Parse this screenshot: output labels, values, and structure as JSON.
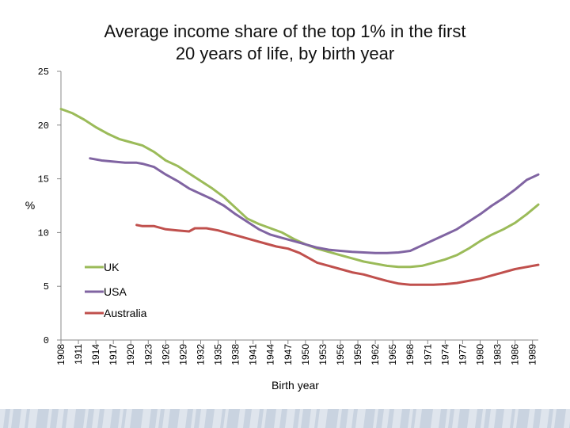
{
  "chart_data": {
    "type": "line",
    "title_lines": [
      "Average income share of the top 1% in the first",
      "20 years of life, by birth year"
    ],
    "xlabel": "Birth year",
    "ylabel": "%",
    "ylim": [
      0,
      25
    ],
    "yticks": [
      0,
      5,
      10,
      15,
      20,
      25
    ],
    "xlim": [
      1908,
      1990
    ],
    "xticks": [
      1908,
      1911,
      1914,
      1917,
      1920,
      1923,
      1926,
      1929,
      1932,
      1935,
      1938,
      1941,
      1944,
      1947,
      1950,
      1953,
      1956,
      1959,
      1962,
      1965,
      1968,
      1971,
      1974,
      1977,
      1980,
      1983,
      1986,
      1989
    ],
    "grid": false,
    "legend_position": "lower-left",
    "series": [
      {
        "name": "UK",
        "color": "#9bbb59",
        "points": [
          [
            1908,
            21.5
          ],
          [
            1910,
            21.1
          ],
          [
            1912,
            20.5
          ],
          [
            1914,
            19.8
          ],
          [
            1916,
            19.2
          ],
          [
            1918,
            18.7
          ],
          [
            1920,
            18.4
          ],
          [
            1922,
            18.1
          ],
          [
            1924,
            17.5
          ],
          [
            1926,
            16.7
          ],
          [
            1928,
            16.2
          ],
          [
            1930,
            15.5
          ],
          [
            1932,
            14.8
          ],
          [
            1934,
            14.1
          ],
          [
            1936,
            13.3
          ],
          [
            1938,
            12.3
          ],
          [
            1940,
            11.3
          ],
          [
            1942,
            10.8
          ],
          [
            1944,
            10.4
          ],
          [
            1946,
            10.0
          ],
          [
            1948,
            9.4
          ],
          [
            1950,
            8.9
          ],
          [
            1952,
            8.5
          ],
          [
            1954,
            8.2
          ],
          [
            1956,
            7.9
          ],
          [
            1958,
            7.6
          ],
          [
            1960,
            7.3
          ],
          [
            1962,
            7.1
          ],
          [
            1964,
            6.9
          ],
          [
            1966,
            6.8
          ],
          [
            1968,
            6.8
          ],
          [
            1970,
            6.9
          ],
          [
            1972,
            7.2
          ],
          [
            1974,
            7.5
          ],
          [
            1976,
            7.9
          ],
          [
            1978,
            8.5
          ],
          [
            1980,
            9.2
          ],
          [
            1982,
            9.8
          ],
          [
            1984,
            10.3
          ],
          [
            1986,
            10.9
          ],
          [
            1988,
            11.7
          ],
          [
            1990,
            12.6
          ]
        ]
      },
      {
        "name": "USA",
        "color": "#8064a2",
        "points": [
          [
            1913,
            16.9
          ],
          [
            1915,
            16.7
          ],
          [
            1917,
            16.6
          ],
          [
            1919,
            16.5
          ],
          [
            1921,
            16.5
          ],
          [
            1922,
            16.4
          ],
          [
            1924,
            16.1
          ],
          [
            1926,
            15.4
          ],
          [
            1928,
            14.8
          ],
          [
            1930,
            14.1
          ],
          [
            1932,
            13.6
          ],
          [
            1934,
            13.1
          ],
          [
            1936,
            12.5
          ],
          [
            1938,
            11.7
          ],
          [
            1940,
            11.0
          ],
          [
            1942,
            10.3
          ],
          [
            1944,
            9.8
          ],
          [
            1946,
            9.5
          ],
          [
            1948,
            9.2
          ],
          [
            1950,
            8.9
          ],
          [
            1952,
            8.6
          ],
          [
            1954,
            8.4
          ],
          [
            1956,
            8.3
          ],
          [
            1958,
            8.2
          ],
          [
            1960,
            8.15
          ],
          [
            1962,
            8.1
          ],
          [
            1964,
            8.1
          ],
          [
            1966,
            8.15
          ],
          [
            1968,
            8.3
          ],
          [
            1970,
            8.8
          ],
          [
            1972,
            9.3
          ],
          [
            1974,
            9.8
          ],
          [
            1976,
            10.3
          ],
          [
            1978,
            11.0
          ],
          [
            1980,
            11.7
          ],
          [
            1982,
            12.5
          ],
          [
            1984,
            13.2
          ],
          [
            1986,
            14.0
          ],
          [
            1988,
            14.9
          ],
          [
            1990,
            15.4
          ]
        ]
      },
      {
        "name": "Australia",
        "color": "#c0504d",
        "points": [
          [
            1921,
            10.7
          ],
          [
            1922,
            10.6
          ],
          [
            1924,
            10.6
          ],
          [
            1926,
            10.3
          ],
          [
            1928,
            10.2
          ],
          [
            1930,
            10.1
          ],
          [
            1931,
            10.4
          ],
          [
            1933,
            10.4
          ],
          [
            1935,
            10.2
          ],
          [
            1937,
            9.9
          ],
          [
            1939,
            9.6
          ],
          [
            1941,
            9.3
          ],
          [
            1943,
            9.0
          ],
          [
            1945,
            8.7
          ],
          [
            1947,
            8.5
          ],
          [
            1949,
            8.1
          ],
          [
            1951,
            7.5
          ],
          [
            1952,
            7.2
          ],
          [
            1954,
            6.9
          ],
          [
            1956,
            6.6
          ],
          [
            1958,
            6.3
          ],
          [
            1960,
            6.1
          ],
          [
            1962,
            5.8
          ],
          [
            1964,
            5.5
          ],
          [
            1966,
            5.25
          ],
          [
            1968,
            5.15
          ],
          [
            1970,
            5.15
          ],
          [
            1972,
            5.15
          ],
          [
            1974,
            5.2
          ],
          [
            1976,
            5.3
          ],
          [
            1978,
            5.5
          ],
          [
            1980,
            5.7
          ],
          [
            1982,
            6.0
          ],
          [
            1984,
            6.3
          ],
          [
            1986,
            6.6
          ],
          [
            1988,
            6.8
          ],
          [
            1990,
            7.0
          ]
        ]
      }
    ],
    "footer_colors": [
      "#c9d3e0",
      "#dfe5ed"
    ]
  }
}
